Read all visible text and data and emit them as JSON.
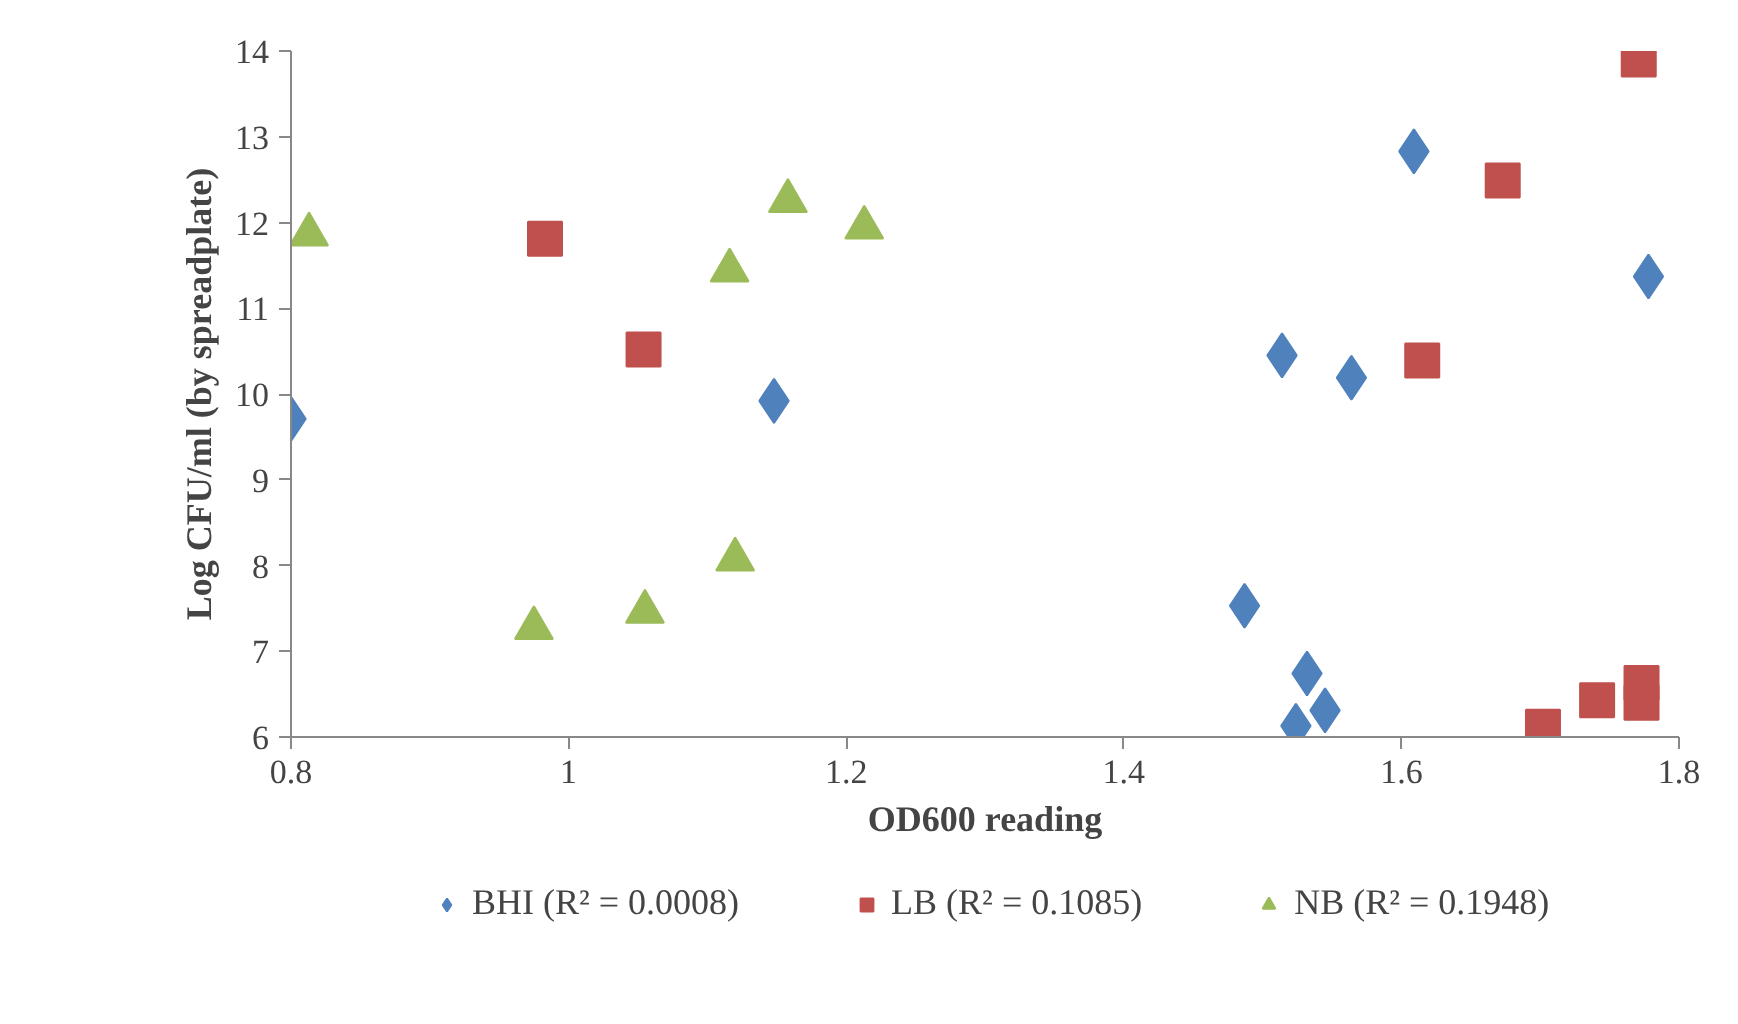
{
  "chart_data": {
    "type": "scatter",
    "xlabel": "OD600 reading",
    "ylabel": "Log CFU/ml (by spreadplate)",
    "xlim": [
      0.8,
      1.8
    ],
    "xticks": [
      0.8,
      1,
      1.2,
      1.4,
      1.6,
      1.8
    ],
    "ylim": [
      6,
      14
    ],
    "yticks": [
      6,
      7,
      8,
      9,
      10,
      11,
      12,
      13,
      14
    ],
    "grid": false,
    "legend": "bottom",
    "series": [
      {
        "name": "BHI (R² = 0.0008)",
        "color": "#4f81bd",
        "marker": "diamond",
        "x": [
          0.8,
          1.148,
          1.609,
          1.778,
          1.514,
          1.564,
          1.487,
          1.532,
          1.545,
          1.524
        ],
        "values": [
          9.71,
          9.92,
          12.83,
          11.37,
          10.45,
          10.19,
          7.53,
          6.74,
          6.31,
          6.13
        ]
      },
      {
        "name": "LB (R² = 0.1085)",
        "color": "#c0504d",
        "marker": "square",
        "x": [
          0.983,
          1.054,
          1.771,
          1.673,
          1.615,
          1.702,
          1.741,
          1.773,
          1.773
        ],
        "values": [
          11.81,
          10.52,
          13.9,
          12.49,
          10.39,
          6.12,
          6.43,
          6.63,
          6.4
        ]
      },
      {
        "name": "NB (R² = 0.1948)",
        "color": "#9bbb59",
        "marker": "triangle",
        "x": [
          0.813,
          0.975,
          1.055,
          1.116,
          1.12,
          1.158,
          1.213
        ],
        "values": [
          11.86,
          7.27,
          7.46,
          11.44,
          8.07,
          12.25,
          11.94
        ]
      }
    ]
  }
}
